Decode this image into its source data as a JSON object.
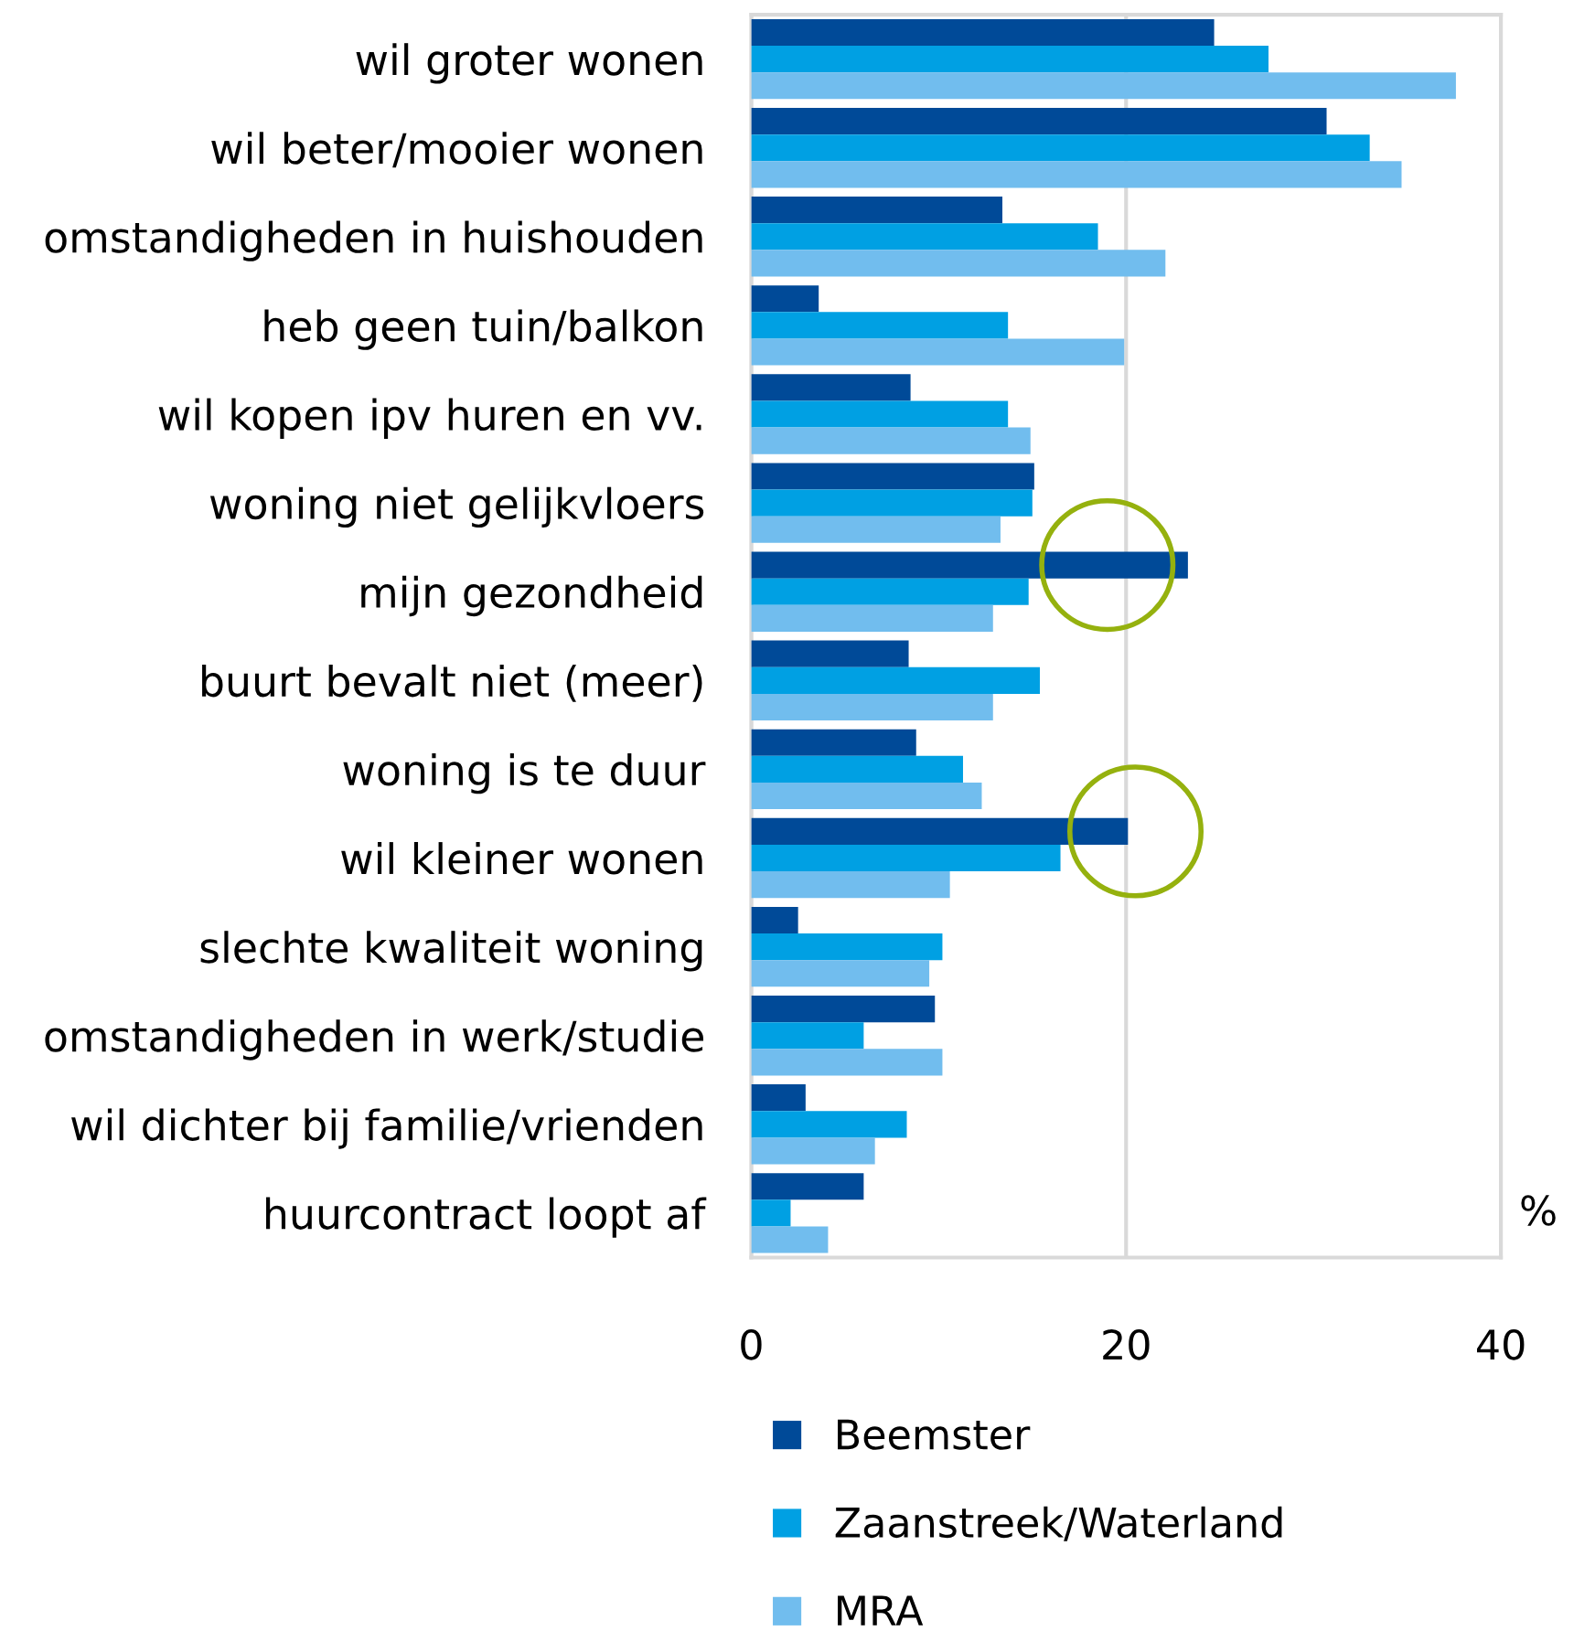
{
  "chart_data": {
    "type": "bar",
    "orientation": "horizontal",
    "xlabel": "%",
    "categories": [
      "wil groter wonen",
      "wil beter/mooier wonen",
      "omstandigheden in huishouden",
      "heb geen tuin/balkon",
      "wil kopen ipv huren en vv.",
      "woning niet gelijkvloers",
      "mijn gezondheid",
      "buurt bevalt niet (meer)",
      "woning is te duur",
      "wil kleiner wonen",
      "slechte kwaliteit woning",
      "omstandigheden in werk/studie",
      "wil dichter bij familie/vrienden",
      "huurcontract loopt af"
    ],
    "series": [
      {
        "name": "Beemster",
        "color": "#004a98",
        "values": [
          24.7,
          30.7,
          13.4,
          3.6,
          8.5,
          15.1,
          23.3,
          8.4,
          8.8,
          20.1,
          2.5,
          9.8,
          2.9,
          6.0
        ]
      },
      {
        "name": "Zaanstreek/Waterland",
        "color": "#00a0e3",
        "values": [
          27.6,
          33.0,
          18.5,
          13.7,
          13.7,
          15.0,
          14.8,
          15.4,
          11.3,
          16.5,
          10.2,
          6.0,
          8.3,
          2.1
        ]
      },
      {
        "name": "MRA",
        "color": "#71bdee",
        "values": [
          37.6,
          34.7,
          22.1,
          19.9,
          14.9,
          13.3,
          12.9,
          12.9,
          12.3,
          10.6,
          9.5,
          10.2,
          6.6,
          4.1
        ]
      }
    ],
    "xlim": [
      0,
      40
    ],
    "xticks": [
      0,
      20,
      40
    ],
    "grid": "x",
    "legend": "bottom"
  }
}
